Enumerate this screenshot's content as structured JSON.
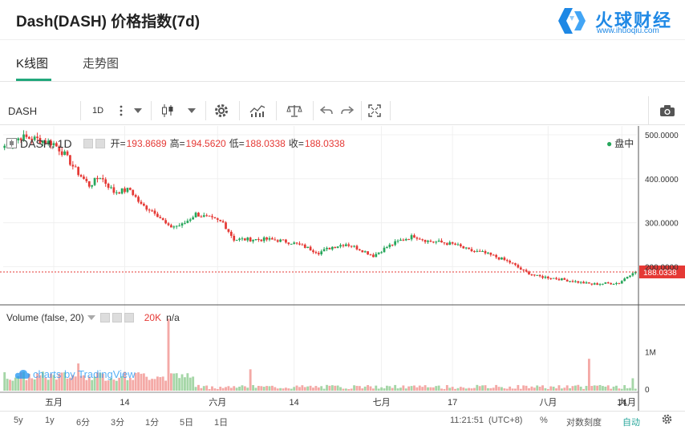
{
  "header": {
    "title": "Dash(DASH) 价格指数(7d)",
    "logo_name": "火球财经",
    "logo_url": "www.ihuoqiu.com"
  },
  "tabs": [
    {
      "label": "K线图",
      "active": true
    },
    {
      "label": "走势图",
      "active": false
    }
  ],
  "toolbar": {
    "symbol": "DASH",
    "interval": "1D",
    "icons": [
      "more-icon",
      "candles-icon",
      "dropdown-icon",
      "settings-icon",
      "indicators-icon",
      "compare-icon",
      "undo-icon",
      "redo-icon",
      "fullscreen-icon",
      "camera-icon"
    ]
  },
  "legend": {
    "symbol": "DASH, 1D",
    "open_label": "开=",
    "open": "193.8689",
    "high_label": "高=",
    "high": "194.5620",
    "low_label": "低=",
    "low": "188.0338",
    "close_label": "收=",
    "close": "188.0338",
    "status": "盘中",
    "volume_title": "Volume (false, 20)",
    "volume_value": "20K",
    "volume_extra": "n/a"
  },
  "watermark": "charts by TradingView",
  "colors": {
    "up": "#26a65b",
    "down": "#e53935",
    "vol_up": "#a5d6a7",
    "vol_down": "#f4a9a6",
    "accent": "#21a87c"
  },
  "bottom_bar": {
    "ranges": [
      "5y",
      "1y",
      "6分",
      "3分",
      "1分",
      "5日",
      "1日"
    ],
    "time": "11:21:51",
    "timezone": "(UTC+8)",
    "percent": "%",
    "log": "对数刻度",
    "auto": "自动",
    "settings_icon": "gear-icon"
  },
  "chart_data": {
    "type": "candlestick",
    "price_axis": {
      "ticks": [
        500,
        400,
        300,
        200
      ],
      "tick_labels": [
        "500.0000",
        "400.0000",
        "300.0000",
        "200.0000"
      ],
      "ylim": [
        115,
        520
      ],
      "last_price": 188.0338,
      "last_price_label": "188.0338"
    },
    "volume_axis": {
      "tick_labels": [
        "1M",
        "0"
      ]
    },
    "x_axis": {
      "tick_labels": [
        "五月",
        "14",
        "六月",
        "14",
        "七月",
        "17",
        "八月",
        "14",
        "九月"
      ]
    },
    "close_keypoints": [
      [
        0,
        475
      ],
      [
        6,
        495
      ],
      [
        12,
        490
      ],
      [
        18,
        480
      ],
      [
        22,
        455
      ],
      [
        26,
        420
      ],
      [
        31,
        385
      ],
      [
        35,
        405
      ],
      [
        40,
        370
      ],
      [
        46,
        375
      ],
      [
        50,
        340
      ],
      [
        55,
        325
      ],
      [
        60,
        290
      ],
      [
        65,
        295
      ],
      [
        70,
        320
      ],
      [
        75,
        310
      ],
      [
        80,
        300
      ],
      [
        84,
        262
      ],
      [
        90,
        262
      ],
      [
        96,
        262
      ],
      [
        100,
        260
      ],
      [
        105,
        255
      ],
      [
        110,
        245
      ],
      [
        115,
        232
      ],
      [
        120,
        245
      ],
      [
        125,
        252
      ],
      [
        130,
        240
      ],
      [
        135,
        225
      ],
      [
        140,
        245
      ],
      [
        145,
        260
      ],
      [
        150,
        270
      ],
      [
        155,
        258
      ],
      [
        160,
        255
      ],
      [
        165,
        250
      ],
      [
        170,
        237
      ],
      [
        175,
        232
      ],
      [
        180,
        222
      ],
      [
        185,
        210
      ],
      [
        190,
        190
      ],
      [
        195,
        178
      ],
      [
        200,
        175
      ],
      [
        205,
        170
      ],
      [
        210,
        165
      ],
      [
        215,
        160
      ],
      [
        220,
        162
      ],
      [
        225,
        163
      ],
      [
        230,
        188
      ]
    ],
    "volume_spikes": [
      {
        "index": 27,
        "value": 700000
      },
      {
        "index": 60,
        "value": 1850000
      },
      {
        "index": 90,
        "value": 550000
      },
      {
        "index": 130,
        "value": 120000
      },
      {
        "index": 214,
        "value": 820000
      },
      {
        "index": 230,
        "value": 320000
      }
    ]
  }
}
